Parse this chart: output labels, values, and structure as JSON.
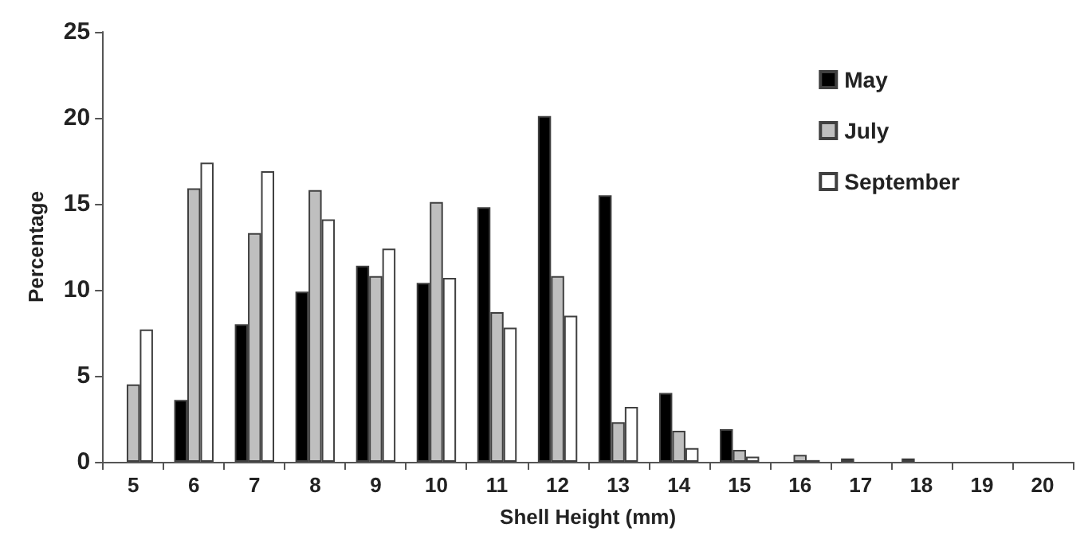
{
  "chart_data": {
    "type": "bar",
    "xlabel": "Shell Height (mm)",
    "ylabel": "Percentage",
    "categories": [
      "5",
      "6",
      "7",
      "8",
      "9",
      "10",
      "11",
      "12",
      "13",
      "14",
      "15",
      "16",
      "17",
      "18",
      "19",
      "20"
    ],
    "series": [
      {
        "name": "May",
        "color": "#000000",
        "values": [
          0,
          3.6,
          8.0,
          9.9,
          11.4,
          10.4,
          14.8,
          20.1,
          15.5,
          4.0,
          1.9,
          0,
          0.2,
          0.2,
          0,
          0
        ]
      },
      {
        "name": "July",
        "color": "#bfbfbf",
        "values": [
          4.5,
          15.9,
          13.3,
          15.8,
          10.8,
          15.1,
          8.7,
          10.8,
          2.3,
          1.8,
          0.7,
          0.4,
          0,
          0,
          0,
          0
        ]
      },
      {
        "name": "September",
        "color": "#ffffff",
        "values": [
          7.7,
          17.4,
          16.9,
          14.1,
          12.4,
          10.7,
          7.8,
          8.5,
          3.2,
          0.8,
          0.3,
          0.1,
          0,
          0,
          0,
          0
        ]
      }
    ],
    "ylim": [
      0,
      25
    ],
    "yticks": [
      0,
      5,
      10,
      15,
      20,
      25
    ],
    "grid": false,
    "legend": "top right"
  }
}
